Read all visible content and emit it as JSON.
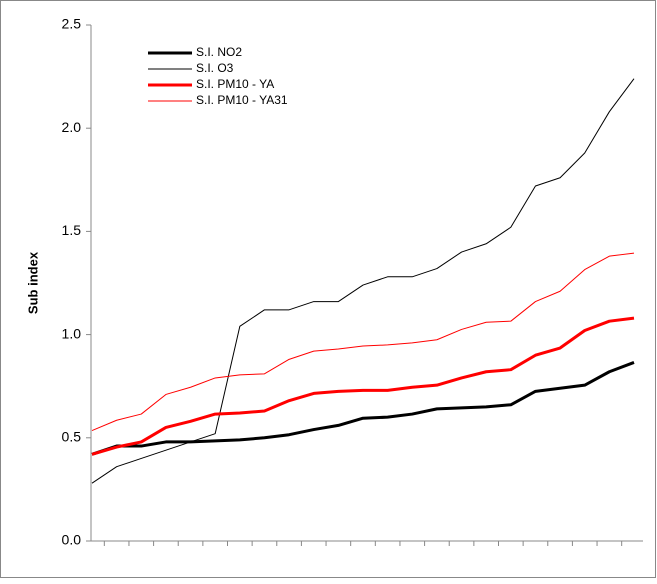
{
  "chart_data": {
    "type": "line",
    "ylabel": "Sub index",
    "categories": [
      null,
      null,
      null,
      null,
      null,
      null,
      null,
      null,
      null,
      null,
      null,
      null,
      null,
      null,
      null,
      null,
      null,
      null,
      null,
      null,
      null,
      null,
      null
    ],
    "series": [
      {
        "name": "S.I. NO2",
        "color": "#000000",
        "width": 3,
        "values": [
          0.42,
          0.46,
          0.46,
          0.48,
          0.48,
          0.485,
          0.49,
          0.5,
          0.515,
          0.54,
          0.56,
          0.595,
          0.6,
          0.615,
          0.64,
          0.645,
          0.65,
          0.66,
          0.725,
          0.74,
          0.755,
          0.82,
          0.865
        ]
      },
      {
        "name": "S.I. O3",
        "color": "#000000",
        "width": 1,
        "values": [
          0.28,
          0.36,
          0.4,
          0.44,
          0.48,
          0.52,
          1.04,
          1.12,
          1.12,
          1.16,
          1.16,
          1.24,
          1.28,
          1.28,
          1.32,
          1.4,
          1.44,
          1.52,
          1.72,
          1.76,
          1.88,
          2.08,
          2.24
        ]
      },
      {
        "name": "S.I. PM10 - YA",
        "color": "#ff0000",
        "width": 3,
        "values": [
          0.42,
          0.455,
          0.48,
          0.55,
          0.58,
          0.615,
          0.62,
          0.63,
          0.68,
          0.715,
          0.725,
          0.73,
          0.73,
          0.745,
          0.755,
          0.79,
          0.82,
          0.83,
          0.9,
          0.935,
          1.02,
          1.065,
          1.08
        ]
      },
      {
        "name": "S.I. PM10 - YA31",
        "color": "#ff0000",
        "width": 1,
        "values": [
          0.535,
          0.585,
          0.615,
          0.71,
          0.745,
          0.79,
          0.805,
          0.81,
          0.88,
          0.92,
          0.93,
          0.945,
          0.95,
          0.96,
          0.975,
          1.025,
          1.06,
          1.065,
          1.16,
          1.21,
          1.315,
          1.38,
          1.395
        ]
      }
    ],
    "ylim": [
      0,
      2.5
    ],
    "yticks": [
      {
        "value": 0,
        "label": "0.0"
      },
      0.5,
      {
        "value": 1,
        "label": "1.0"
      },
      1.5,
      {
        "value": 2,
        "label": "2.0"
      },
      2.5
    ],
    "grid": false
  }
}
